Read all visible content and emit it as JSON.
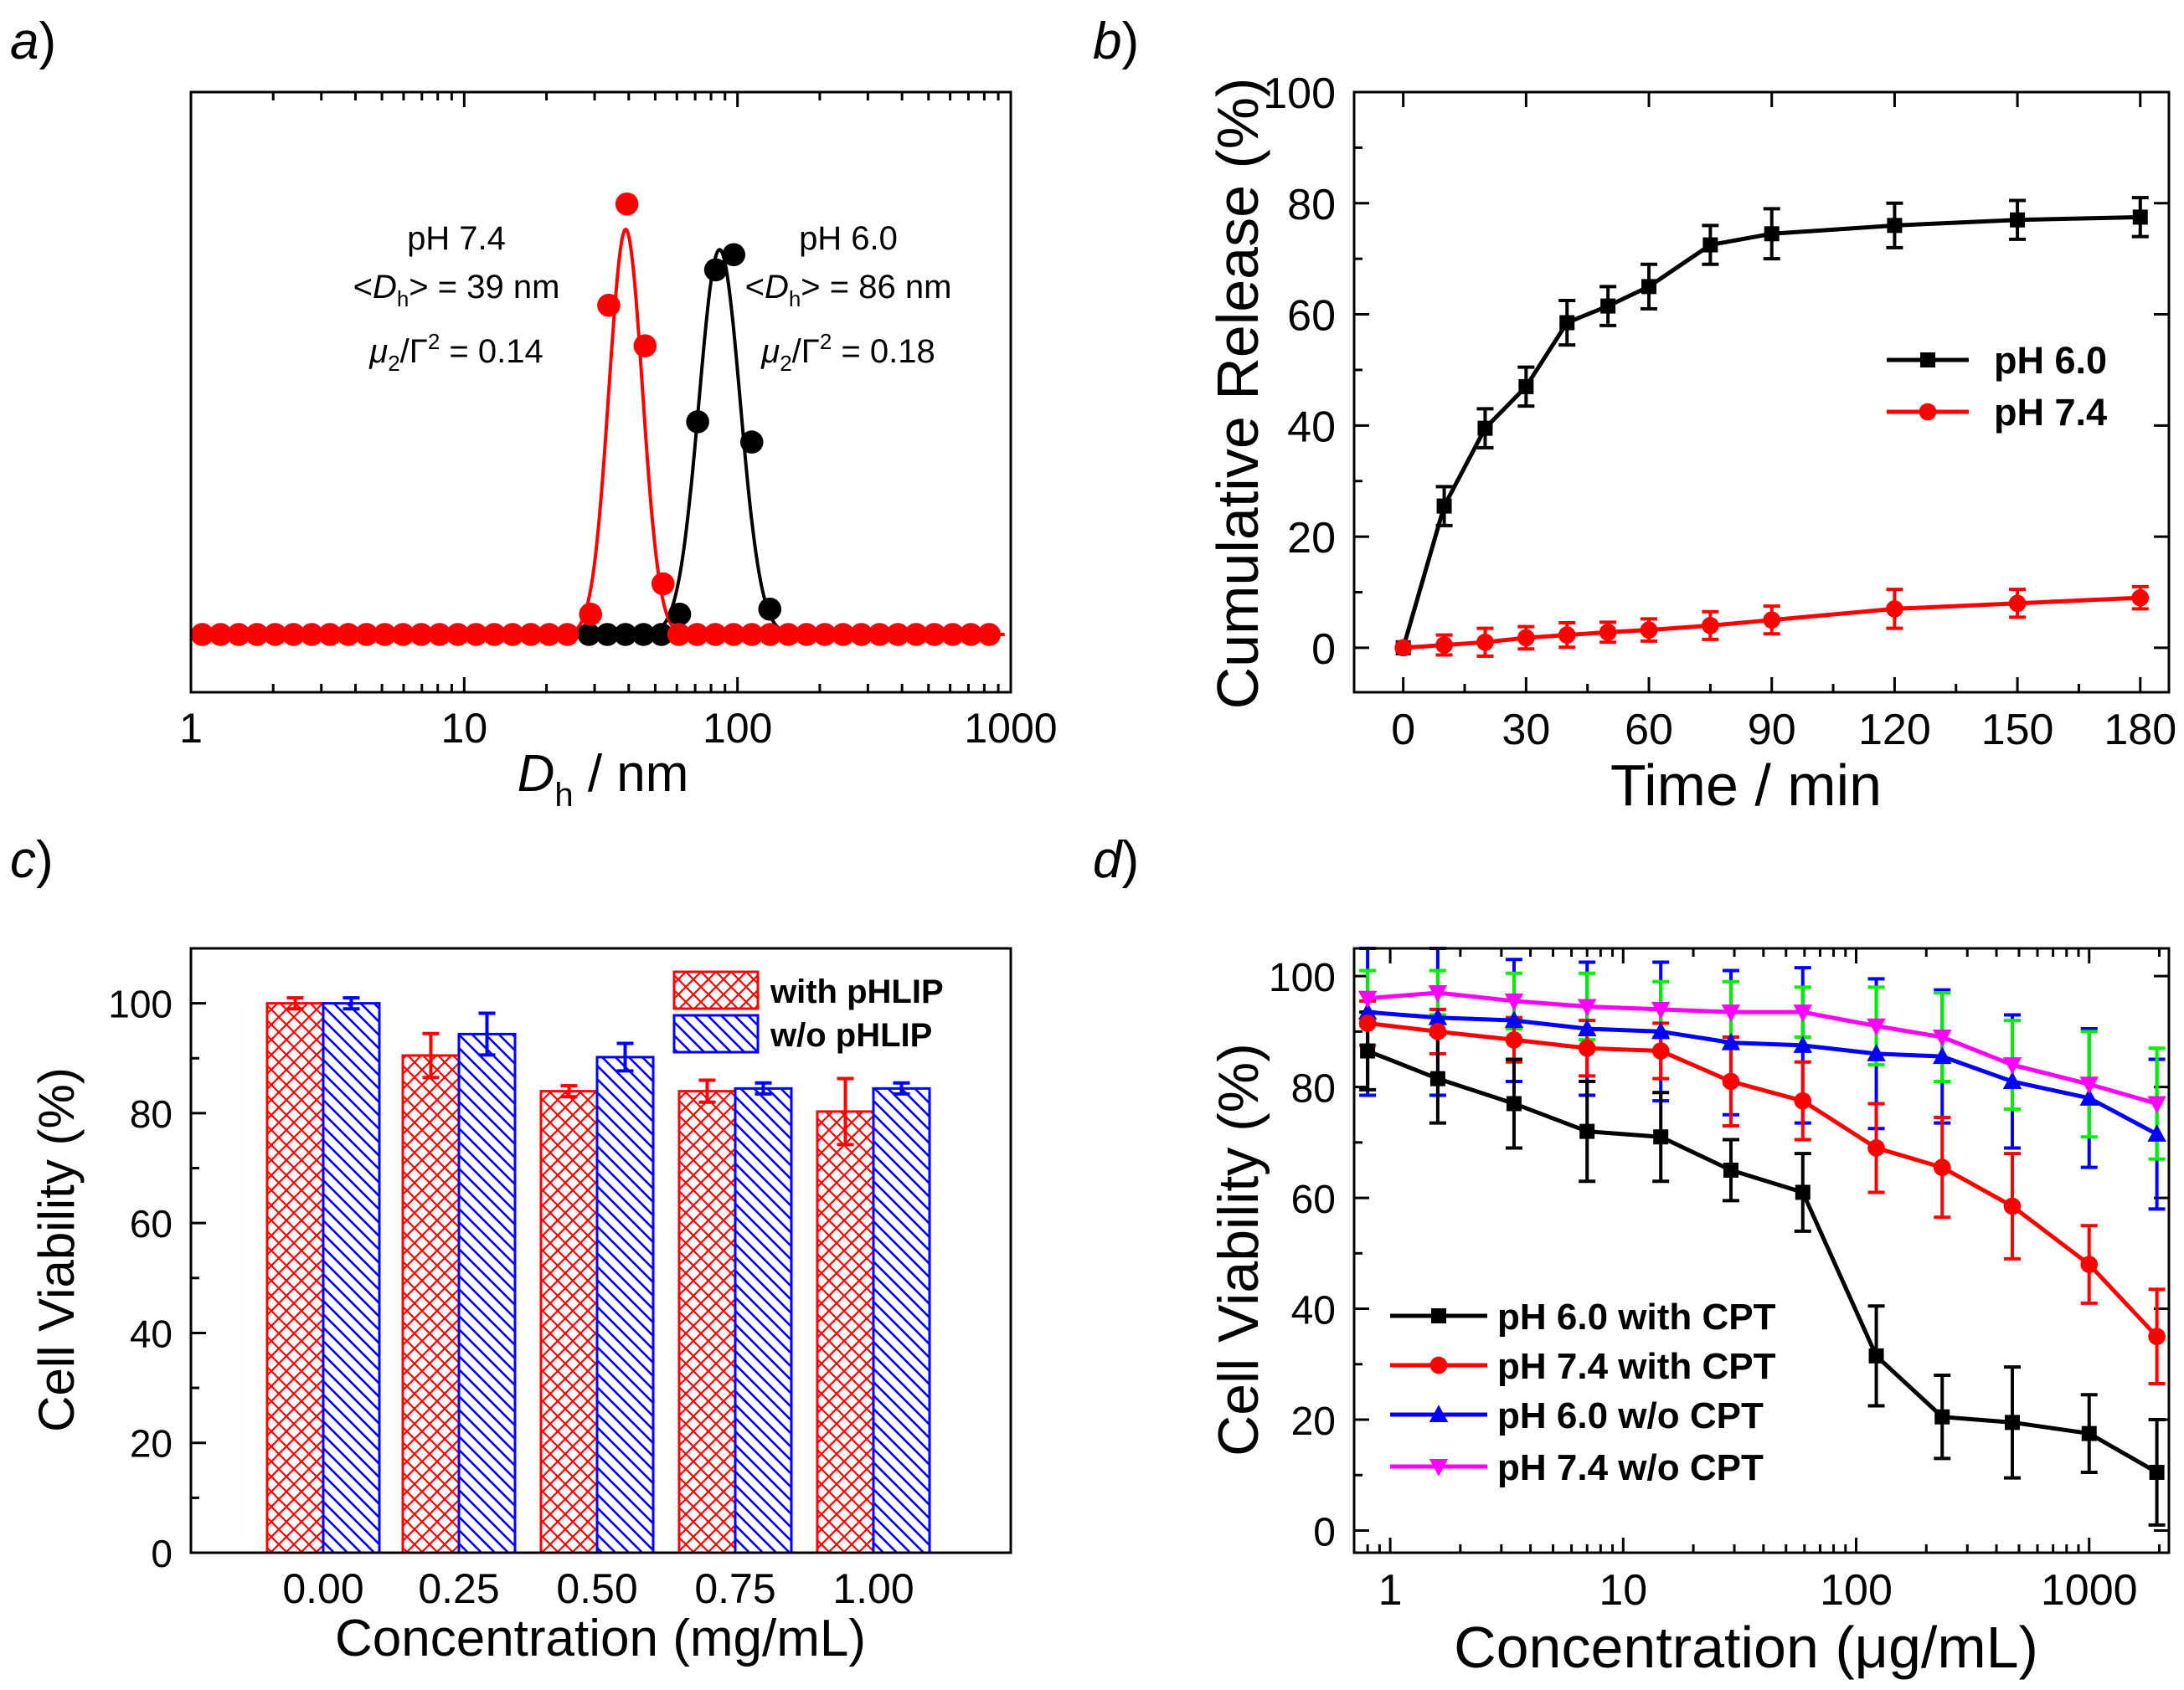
{
  "figure": {
    "panels": [
      {
        "id": "a",
        "letter": "a",
        "paren": ")"
      },
      {
        "id": "b",
        "letter": "b",
        "paren": ")"
      },
      {
        "id": "c",
        "letter": "c",
        "paren": ")"
      },
      {
        "id": "d",
        "letter": "d",
        "paren": ")"
      }
    ]
  },
  "colors": {
    "black": "#000000",
    "red": "#ff0000",
    "blue": "#0000ff",
    "magenta": "#ff00ff",
    "green": "#00ee00",
    "white": "#ffffff"
  },
  "chart_data": [
    {
      "id": "a",
      "type": "scatter",
      "xscale": "log",
      "xlim": [
        1,
        1000
      ],
      "ylim": [
        0,
        1
      ],
      "xticks": [
        1,
        10,
        100,
        1000
      ],
      "xtick_labels": [
        "1",
        "10",
        "100",
        "1000"
      ],
      "xlabel_main": "D",
      "xlabel_sub": "h",
      "xlabel_rest": " / nm",
      "ylabel": "",
      "annotations": [
        {
          "id": "ph74",
          "line1": "pH 7.4",
          "line2_pre": "<",
          "line2_D": "D",
          "line2_sub": "h",
          "line2_post": "> = 39 nm",
          "line3_mu": "μ",
          "line3_sub": "2",
          "line3_mid": "/Γ",
          "line3_sup": "2",
          "line3_post": " = 0.14"
        },
        {
          "id": "ph60",
          "line1": "pH 6.0",
          "line2_pre": "<",
          "line2_D": "D",
          "line2_sub": "h",
          "line2_post": "> = 86 nm",
          "line3_mu": "μ",
          "line3_sub": "2",
          "line3_mid": "/Γ",
          "line3_sup": "2",
          "line3_post": " = 0.18"
        }
      ],
      "series": [
        {
          "name": "pH 6.0",
          "color": "#000000",
          "x": [
            28.6,
            33.4,
            38.9,
            45.3,
            52.7,
            61.4,
            71.5,
            83.2,
            96.9,
            112.8,
            131.3
          ],
          "y": [
            0,
            0,
            0,
            0,
            0,
            0.04,
            0.42,
            0.72,
            0.75,
            0.38,
            0.05
          ],
          "fit_peak": 86,
          "fit_sigma": 0.16,
          "fit_amp": 0.76
        },
        {
          "name": "pH 7.4",
          "color": "#ff0000",
          "x": [
            29.0,
            33.8,
            39.4,
            45.9,
            53.4
          ],
          "y": [
            0.04,
            0.65,
            0.85,
            0.57,
            0.1
          ],
          "fit_peak": 39,
          "fit_sigma": 0.13,
          "fit_amp": 0.8,
          "baseline_ranges": [
            [
              1.1,
              27
            ],
            [
              60,
              950
            ]
          ]
        }
      ]
    },
    {
      "id": "b",
      "type": "line",
      "xlabel": "Time / min",
      "ylabel": "Cumulative Release (%)",
      "xlim": [
        -12,
        187
      ],
      "ylim": [
        -8,
        100
      ],
      "xticks": [
        0,
        30,
        60,
        90,
        120,
        150,
        180
      ],
      "yticks": [
        0,
        20,
        40,
        60,
        80,
        100
      ],
      "legend": "right",
      "series": [
        {
          "name": "pH 6.0",
          "marker": "square",
          "color": "#000000",
          "x": [
            0,
            10,
            20,
            30,
            40,
            50,
            60,
            75,
            90,
            120,
            150,
            180
          ],
          "y": [
            0,
            25.5,
            39.5,
            47,
            58.5,
            61.5,
            65,
            72.5,
            74.5,
            76,
            77,
            77.5
          ],
          "err": [
            0,
            3.5,
            3.5,
            3.5,
            4,
            3.5,
            4,
            3.5,
            4.5,
            4,
            3.5,
            3.5
          ]
        },
        {
          "name": "pH 7.4",
          "marker": "circle",
          "color": "#ff0000",
          "x": [
            0,
            10,
            20,
            30,
            40,
            50,
            60,
            75,
            90,
            120,
            150,
            180
          ],
          "y": [
            0,
            0.5,
            1,
            1.8,
            2.3,
            2.8,
            3.2,
            4,
            5,
            7,
            8,
            9
          ],
          "err": [
            0,
            1.8,
            2.5,
            2,
            2.2,
            1.8,
            2,
            2.5,
            2.5,
            3.5,
            2.5,
            2
          ]
        }
      ]
    },
    {
      "id": "c",
      "type": "bar",
      "xlabel": "Concentration (mg/mL)",
      "ylabel": "Cell Viability (%)",
      "categories": [
        "0.00",
        "0.25",
        "0.50",
        "0.75",
        "1.00"
      ],
      "ylim": [
        0,
        110
      ],
      "yticks": [
        0,
        20,
        40,
        60,
        80,
        100
      ],
      "legend": "top-right",
      "series": [
        {
          "name": "with pHLIP",
          "pattern": "crosshatch",
          "color": "#ff0000",
          "values": [
            100,
            90.5,
            84,
            84,
            80.3
          ],
          "err": [
            1,
            4,
            1,
            2,
            6
          ]
        },
        {
          "name": "w/o pHLIP",
          "pattern": "diagonal",
          "color": "#0000ff",
          "values": [
            100,
            94.4,
            90.2,
            84.5,
            84.5
          ],
          "err": [
            1,
            3.8,
            2.5,
            1,
            1
          ]
        }
      ]
    },
    {
      "id": "d",
      "type": "line",
      "xscale": "log",
      "xlabel": "Concentration (μg/mL)",
      "ylabel": "Cell Viability (%)",
      "xlim": [
        0.7,
        2200
      ],
      "ylim": [
        -4,
        105
      ],
      "xticks": [
        1,
        10,
        100,
        1000
      ],
      "xtick_labels": [
        "1",
        "10",
        "100",
        "1000"
      ],
      "yticks": [
        0,
        20,
        40,
        60,
        80,
        100
      ],
      "legend": "bottom-left",
      "x": [
        0.8,
        1.6,
        3.4,
        7,
        14.5,
        29,
        59,
        122,
        234,
        468,
        1000,
        1953
      ],
      "series": [
        {
          "name": "pH 6.0 with CPT",
          "marker": "square",
          "color": "#000000",
          "y": [
            86.5,
            81.5,
            77,
            72,
            71,
            65,
            61,
            31.5,
            20.5,
            19.5,
            17.5,
            10.5
          ],
          "err": [
            7,
            8,
            8,
            9,
            8,
            5.5,
            7,
            9,
            7.5,
            10,
            7,
            9.5
          ]
        },
        {
          "name": "pH 7.4 with CPT",
          "marker": "circle",
          "color": "#ff0000",
          "y": [
            91.5,
            90,
            88.5,
            87,
            86.5,
            81,
            77.5,
            69,
            65.5,
            58.5,
            48,
            35
          ],
          "err": [
            4,
            4,
            4,
            5,
            5,
            8,
            7,
            8,
            9,
            9.5,
            7,
            8.5
          ]
        },
        {
          "name": "pH 6.0 w/o CPT",
          "marker": "triangle-up",
          "color": "#0000ff",
          "y": [
            93.5,
            92.5,
            92,
            90.5,
            90,
            88,
            87.5,
            86,
            85.5,
            81,
            78,
            71.5
          ],
          "err": [
            15,
            14,
            11,
            12,
            12.5,
            13,
            14,
            13.5,
            12,
            12,
            12.5,
            13.5
          ]
        },
        {
          "name": "pH 7.4 w/o CPT",
          "marker": "triangle-down",
          "color": "#ff00ff",
          "errcolor": "#00ee00",
          "y": [
            96,
            97,
            95.5,
            94.5,
            94,
            93.5,
            93.5,
            91,
            89,
            84,
            80.5,
            77
          ],
          "err": [
            5,
            4,
            5,
            6,
            5,
            5.5,
            4.5,
            7,
            8,
            8,
            9.5,
            10
          ]
        }
      ]
    }
  ]
}
